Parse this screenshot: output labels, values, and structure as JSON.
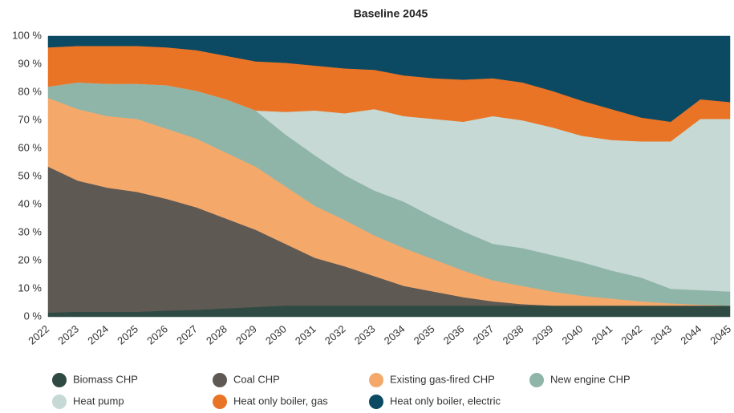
{
  "chart_data": {
    "type": "stacked_area",
    "title": "Baseline 2045",
    "categories": [
      "2022",
      "2023",
      "2024",
      "2025",
      "2026",
      "2027",
      "2028",
      "2029",
      "2030",
      "2031",
      "2032",
      "2033",
      "2034",
      "2035",
      "2036",
      "2037",
      "2038",
      "2039",
      "2040",
      "2041",
      "2042",
      "2043",
      "2044",
      "2045"
    ],
    "ylim": [
      0,
      100
    ],
    "yticks": [
      {
        "value": 0,
        "label": "0 %"
      },
      {
        "value": 10,
        "label": "10 %"
      },
      {
        "value": 20,
        "label": "20 %"
      },
      {
        "value": 30,
        "label": "30 %"
      },
      {
        "value": 40,
        "label": "40 %"
      },
      {
        "value": 50,
        "label": "50 %"
      },
      {
        "value": 60,
        "label": "60 %"
      },
      {
        "value": 70,
        "label": "70 %"
      },
      {
        "value": 80,
        "label": "80 %"
      },
      {
        "value": 90,
        "label": "90 %"
      },
      {
        "value": 100,
        "label": "100 %"
      }
    ],
    "series": [
      {
        "name": "Biomass CHP",
        "color": "#2f4a43",
        "values": [
          1.5,
          1.8,
          1.8,
          1.8,
          2.2,
          2.5,
          3,
          3.5,
          4,
          4,
          4,
          4,
          4,
          4,
          4,
          4,
          4,
          4,
          4,
          4,
          4,
          4,
          4,
          4
        ]
      },
      {
        "name": "Coal CHP",
        "color": "#5f5954",
        "values": [
          52,
          46.7,
          44.2,
          42.7,
          39.8,
          36.5,
          32,
          27.5,
          22,
          17,
          14,
          10.5,
          7,
          5,
          3,
          1.5,
          0.5,
          0,
          0,
          0,
          0,
          0,
          0,
          0
        ]
      },
      {
        "name": "Existing gas-fired CHP",
        "color": "#f4a96b",
        "values": [
          24.5,
          25.5,
          25.5,
          26,
          25,
          24.5,
          23.5,
          22.5,
          20.5,
          18.5,
          16.5,
          14.5,
          13.5,
          11.5,
          9.5,
          7.5,
          6.5,
          5,
          3.5,
          2.5,
          1.5,
          0.8,
          0.3,
          0
        ]
      },
      {
        "name": "New engine CHP",
        "color": "#8fb5a9",
        "values": [
          4,
          9.5,
          11.5,
          12.5,
          15.5,
          17,
          19,
          20,
          18.5,
          18,
          16,
          16,
          16.5,
          15,
          14,
          13,
          13.5,
          13,
          12,
          10,
          8.5,
          5.2,
          5.2,
          5
        ]
      },
      {
        "name": "Heat pump",
        "color": "#c6d9d4",
        "values": [
          0,
          0,
          0,
          0,
          0,
          0,
          0,
          0,
          8,
          16,
          22,
          29,
          30.5,
          35,
          39,
          45.5,
          45.5,
          45.5,
          45,
          46.5,
          48.5,
          52.5,
          61,
          61.5
        ]
      },
      {
        "name": "Heat only boiler, gas",
        "color": "#ea7425",
        "values": [
          14,
          13,
          13.5,
          13.5,
          13.5,
          14.5,
          15.5,
          17.5,
          17.5,
          16,
          16,
          14,
          14.5,
          14.5,
          15,
          13.5,
          13.5,
          13,
          12.5,
          11,
          8.5,
          7,
          7,
          6
        ]
      },
      {
        "name": "Heat only boiler, electric",
        "color": "#0c4a63",
        "values": [
          4,
          3.5,
          3.5,
          3.5,
          4,
          5,
          7,
          9,
          9.5,
          10.5,
          11.5,
          12,
          14,
          15,
          15.5,
          15,
          16.5,
          19.5,
          23,
          26,
          29,
          30.5,
          22.5,
          23.5
        ]
      }
    ]
  }
}
